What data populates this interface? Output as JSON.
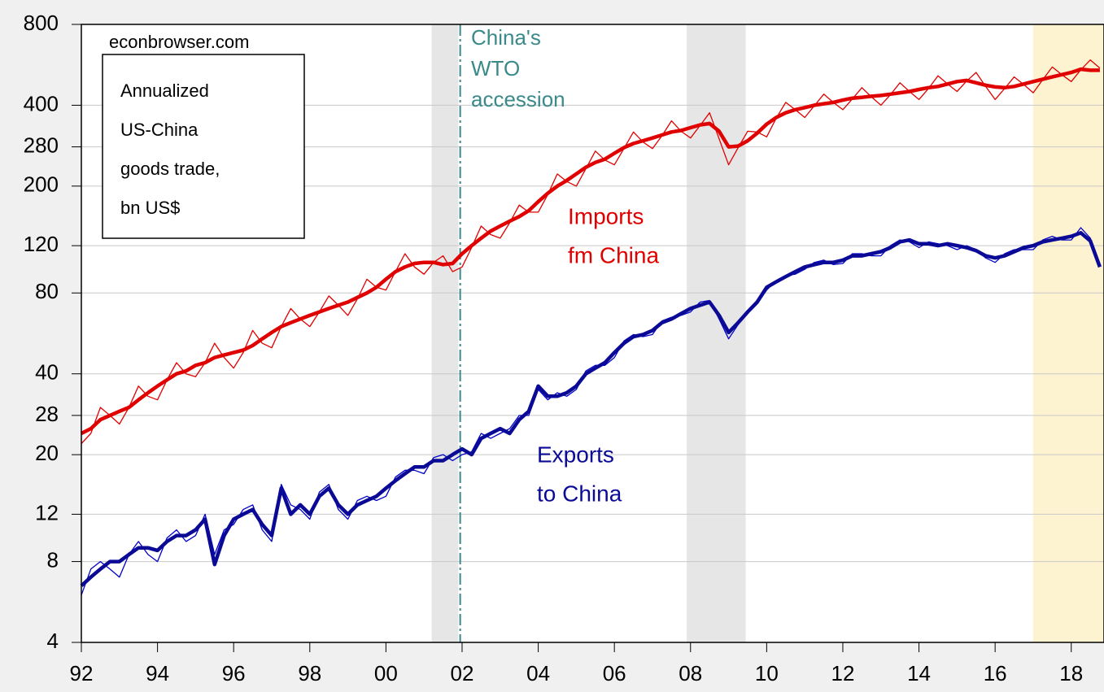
{
  "chart_data": {
    "type": "line",
    "log_y": true,
    "grid": true,
    "annotations": [
      {
        "name": "source",
        "lines": [
          "econbrowser.com"
        ]
      },
      {
        "name": "title-box",
        "lines": [
          "Annualized",
          "US-China",
          "goods trade,",
          "bn US$"
        ]
      },
      {
        "name": "wto",
        "lines": [
          "China's",
          "WTO",
          "accession"
        ],
        "color": "#3a8a8a",
        "x": 2001.95
      },
      {
        "name": "imports-label",
        "lines": [
          "Imports",
          "fm China"
        ],
        "color": "#e00000"
      },
      {
        "name": "exports-label",
        "lines": [
          "Exports",
          "to China"
        ],
        "color": "#0a0a96"
      }
    ],
    "shaded": [
      {
        "from": 2001.2,
        "to": 2001.9,
        "color": "#e6e6e6"
      },
      {
        "from": 2007.9,
        "to": 2009.45,
        "color": "#e6e6e6"
      },
      {
        "from": 2017.0,
        "to": 2018.86,
        "color": "#fdf3d0"
      }
    ],
    "xlim": [
      1992,
      2018.86
    ],
    "xticks": [
      {
        "value": 1992,
        "label": "92"
      },
      {
        "value": 1994,
        "label": "94"
      },
      {
        "value": 1996,
        "label": "96"
      },
      {
        "value": 1998,
        "label": "98"
      },
      {
        "value": 2000,
        "label": "00"
      },
      {
        "value": 2002,
        "label": "02"
      },
      {
        "value": 2004,
        "label": "04"
      },
      {
        "value": 2006,
        "label": "06"
      },
      {
        "value": 2008,
        "label": "08"
      },
      {
        "value": 2010,
        "label": "10"
      },
      {
        "value": 2012,
        "label": "12"
      },
      {
        "value": 2014,
        "label": "14"
      },
      {
        "value": 2016,
        "label": "16"
      },
      {
        "value": 2018,
        "label": "18"
      }
    ],
    "ylim": [
      4,
      800
    ],
    "yticks": [
      4,
      8,
      12,
      20,
      28,
      40,
      80,
      120,
      200,
      280,
      400,
      800
    ],
    "x": [
      1992,
      1992.25,
      1992.5,
      1992.75,
      1993,
      1993.25,
      1993.5,
      1993.75,
      1994,
      1994.25,
      1994.5,
      1994.75,
      1995,
      1995.25,
      1995.5,
      1995.75,
      1996,
      1996.25,
      1996.5,
      1996.75,
      1997,
      1997.25,
      1997.5,
      1997.75,
      1998,
      1998.25,
      1998.5,
      1998.75,
      1999,
      1999.25,
      1999.5,
      1999.75,
      2000,
      2000.25,
      2000.5,
      2000.75,
      2001,
      2001.25,
      2001.5,
      2001.75,
      2002,
      2002.25,
      2002.5,
      2002.75,
      2003,
      2003.25,
      2003.5,
      2003.75,
      2004,
      2004.25,
      2004.5,
      2004.75,
      2005,
      2005.25,
      2005.5,
      2005.75,
      2006,
      2006.25,
      2006.5,
      2006.75,
      2007,
      2007.25,
      2007.5,
      2007.75,
      2008,
      2008.25,
      2008.5,
      2008.75,
      2009,
      2009.25,
      2009.5,
      2009.75,
      2010,
      2010.25,
      2010.5,
      2010.75,
      2011,
      2011.25,
      2011.5,
      2011.75,
      2012,
      2012.25,
      2012.5,
      2012.75,
      2013,
      2013.25,
      2013.5,
      2013.75,
      2014,
      2014.25,
      2014.5,
      2014.75,
      2015,
      2015.25,
      2015.5,
      2015.75,
      2016,
      2016.25,
      2016.5,
      2016.75,
      2017,
      2017.25,
      2017.5,
      2017.75,
      2018,
      2018.25,
      2018.5,
      2018.75
    ],
    "series": [
      {
        "color": "#e00000",
        "width": 1.3,
        "values": [
          22,
          24,
          30,
          28,
          26,
          30,
          36,
          33,
          32,
          38,
          44,
          40,
          39,
          44,
          52,
          46,
          42,
          48,
          58,
          52,
          50,
          60,
          70,
          64,
          60,
          68,
          78,
          72,
          66,
          76,
          90,
          84,
          82,
          96,
          112,
          100,
          94,
          104,
          110,
          96,
          100,
          118,
          142,
          132,
          128,
          146,
          170,
          160,
          160,
          186,
          222,
          208,
          200,
          232,
          270,
          250,
          240,
          276,
          318,
          292,
          276,
          308,
          350,
          320,
          302,
          336,
          375,
          300,
          240,
          278,
          320,
          318,
          305,
          358,
          410,
          385,
          360,
          398,
          440,
          410,
          385,
          422,
          465,
          430,
          400,
          438,
          485,
          450,
          420,
          462,
          515,
          480,
          450,
          492,
          530,
          470,
          420,
          462,
          510,
          478,
          445,
          498,
          555,
          520,
          490,
          542,
          590,
          550
        ]
      },
      {
        "color": "#e00000",
        "width": 4.5,
        "values": [
          24,
          25,
          27,
          28,
          29,
          30,
          32,
          34,
          36,
          38,
          40,
          41,
          43,
          44,
          46,
          47,
          48,
          49,
          51,
          54,
          57,
          60,
          62,
          64,
          66,
          68,
          70,
          72,
          74,
          77,
          80,
          84,
          90,
          96,
          100,
          103,
          104,
          104,
          102,
          103,
          112,
          120,
          128,
          136,
          142,
          148,
          154,
          162,
          175,
          188,
          200,
          210,
          222,
          235,
          245,
          252,
          265,
          278,
          288,
          295,
          302,
          310,
          318,
          322,
          330,
          338,
          342,
          320,
          280,
          282,
          295,
          315,
          340,
          360,
          375,
          385,
          392,
          400,
          405,
          410,
          418,
          425,
          428,
          432,
          435,
          440,
          445,
          450,
          458,
          465,
          470,
          480,
          490,
          495,
          485,
          475,
          468,
          465,
          470,
          480,
          490,
          500,
          510,
          520,
          530,
          545,
          540,
          540
        ]
      },
      {
        "color": "#0000c8",
        "width": 1.3,
        "values": [
          6,
          7.5,
          8,
          7.5,
          7,
          8.5,
          9.5,
          8.5,
          8,
          9.8,
          10.5,
          9.5,
          10,
          12,
          8.5,
          10.5,
          11,
          12.5,
          13,
          10.5,
          9.5,
          15.5,
          13,
          12.5,
          11.5,
          14.5,
          15.5,
          12.5,
          11.5,
          13.5,
          14,
          13.5,
          14,
          16.5,
          17.5,
          17.5,
          17,
          19.5,
          20,
          19,
          20,
          20.5,
          24,
          23,
          24,
          25,
          28,
          28,
          35,
          32,
          34,
          33,
          35,
          41,
          43,
          43,
          46,
          53,
          56,
          55,
          56,
          63,
          65,
          66,
          68,
          74,
          75,
          64,
          54,
          61,
          69,
          73,
          82,
          89,
          93,
          94,
          98,
          104,
          106,
          102,
          103,
          112,
          112,
          110,
          110,
          120,
          126,
          124,
          118,
          124,
          122,
          120,
          116,
          120,
          116,
          108,
          104,
          112,
          116,
          116,
          116,
          126,
          130,
          126,
          126,
          140,
          128,
          102
        ]
      },
      {
        "color": "#0a0a96",
        "width": 4.5,
        "values": [
          6.5,
          7,
          7.5,
          8,
          8,
          8.5,
          9,
          9,
          8.8,
          9.5,
          10,
          10,
          10.5,
          11.5,
          7.8,
          10,
          11.5,
          12,
          12.5,
          11,
          10,
          15,
          12,
          13,
          12,
          14,
          15,
          13,
          12,
          13,
          13.5,
          14,
          15,
          16,
          17,
          18,
          18,
          19,
          19,
          20,
          21,
          20,
          23,
          24,
          25,
          24,
          27,
          29,
          36,
          33,
          33,
          34,
          36,
          40,
          42,
          44,
          48,
          52,
          55,
          56,
          58,
          62,
          64,
          67,
          70,
          72,
          74,
          66,
          57,
          62,
          68,
          74,
          84,
          88,
          92,
          96,
          100,
          102,
          104,
          104,
          106,
          110,
          110,
          112,
          114,
          118,
          124,
          126,
          122,
          122,
          120,
          122,
          120,
          118,
          115,
          110,
          108,
          110,
          114,
          118,
          120,
          124,
          126,
          128,
          130,
          134,
          125,
          100
        ]
      }
    ]
  }
}
